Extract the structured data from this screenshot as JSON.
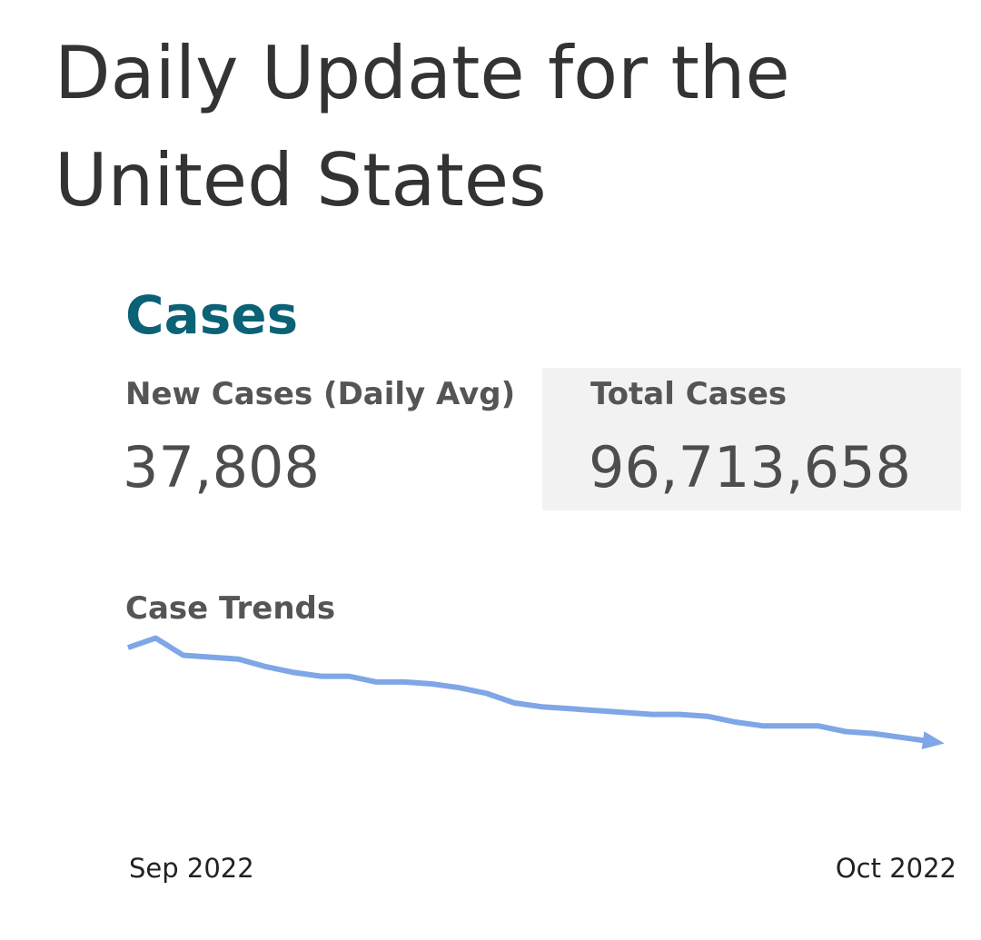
{
  "page": {
    "title": "Daily Update for the United States"
  },
  "cases": {
    "section_title": "Cases",
    "new_cases_label": "New Cases (Daily Avg)",
    "new_cases_value": "37,808",
    "total_cases_label": "Total Cases",
    "total_cases_value": "96,713,658"
  },
  "trends": {
    "title": "Case Trends"
  },
  "colors": {
    "section_accent": "#0b6276",
    "trend_line": "#7fa6e6",
    "total_box_bg": "#f2f2f2"
  },
  "chart_data": {
    "type": "line",
    "x_tick_labels": [
      "Sep 2022",
      "Oct 2022"
    ],
    "series": [
      {
        "values": [
          89,
          94,
          85,
          84,
          83,
          79,
          76,
          74,
          74,
          71,
          71,
          70,
          68,
          65,
          60,
          58,
          57,
          56,
          55,
          54,
          54,
          53,
          50,
          48,
          48,
          48,
          45,
          44,
          42,
          40
        ]
      }
    ],
    "end_marker": "arrow",
    "axes_visible": false,
    "grid": false
  }
}
